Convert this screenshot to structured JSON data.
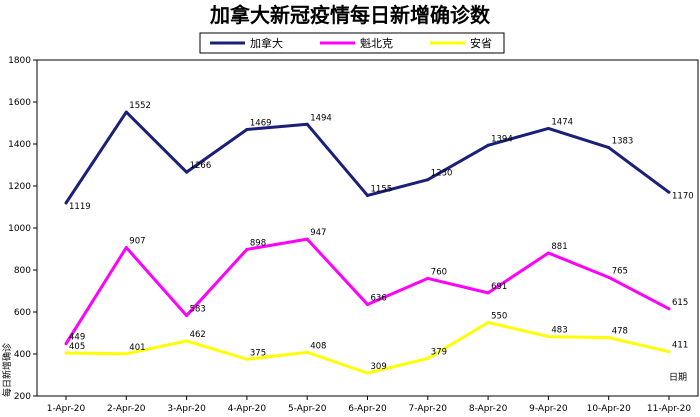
{
  "chart_data": {
    "type": "line",
    "title": "加拿大新冠疫情每日新增确诊数",
    "xlabel": "日期",
    "ylabel": "每日新增确诊",
    "categories": [
      "1-Apr-20",
      "2-Apr-20",
      "3-Apr-20",
      "4-Apr-20",
      "5-Apr-20",
      "6-Apr-20",
      "7-Apr-20",
      "8-Apr-20",
      "9-Apr-20",
      "10-Apr-20",
      "11-Apr-20"
    ],
    "ylim": [
      200,
      1800
    ],
    "yticks": [
      200,
      400,
      600,
      800,
      1000,
      1200,
      1400,
      1600,
      1800
    ],
    "grid": false,
    "legend_position": "top",
    "series": [
      {
        "name": "加拿大",
        "color": "#1a1f7a",
        "values": [
          1119,
          1552,
          1266,
          1469,
          1494,
          1155,
          1230,
          1394,
          1474,
          1383,
          1170
        ]
      },
      {
        "name": "魁北克",
        "color": "#ff00ff",
        "values": [
          449,
          907,
          583,
          898,
          947,
          636,
          760,
          691,
          881,
          765,
          615
        ]
      },
      {
        "name": "安省",
        "color": "#ffff00",
        "values": [
          405,
          401,
          462,
          375,
          408,
          309,
          379,
          550,
          483,
          478,
          411
        ]
      }
    ]
  }
}
